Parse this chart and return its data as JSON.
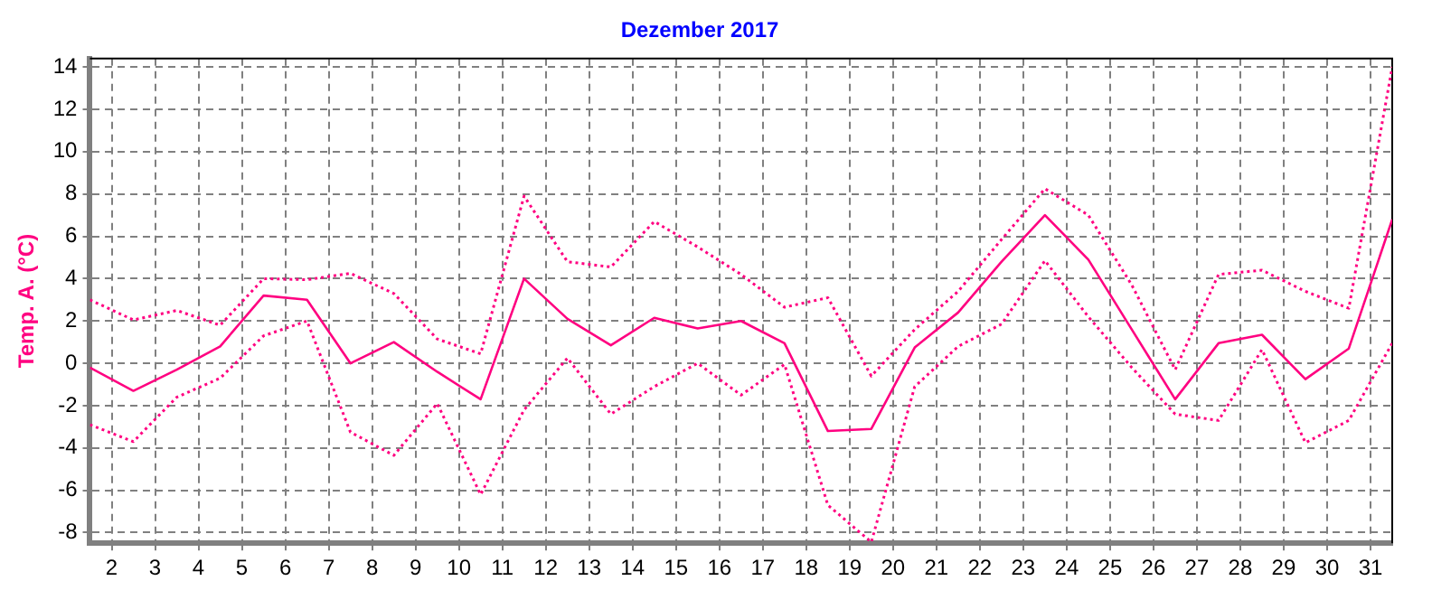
{
  "chart_data": {
    "type": "line",
    "title": "Dezember 2017",
    "ylabel": "Temp. A. (°C)",
    "x": [
      1.5,
      2.5,
      3.5,
      4.5,
      5.5,
      6.5,
      7.5,
      8.5,
      9.5,
      10.5,
      11.5,
      12.5,
      13.5,
      14.5,
      15.5,
      16.5,
      17.5,
      18.5,
      19.5,
      20.5,
      21.5,
      22.5,
      23.5,
      24.5,
      25.5,
      26.5,
      27.5,
      28.5,
      29.5,
      30.5,
      31.5
    ],
    "series": [
      {
        "color": "#ff0080",
        "line_style": "solid",
        "values": [
          -0.2,
          -1.3,
          -0.3,
          0.8,
          3.2,
          3.0,
          0.0,
          1.0,
          -0.4,
          -1.7,
          4.0,
          2.1,
          0.85,
          2.15,
          1.65,
          2.0,
          0.95,
          -3.2,
          -3.1,
          0.75,
          2.4,
          4.8,
          7.0,
          4.9,
          1.6,
          -1.7,
          0.95,
          1.35,
          -0.75,
          0.7,
          6.8
        ]
      },
      {
        "color": "#ff0080",
        "line_style": "dotted",
        "values": [
          3.0,
          2.05,
          2.5,
          1.8,
          4.0,
          3.95,
          4.25,
          3.3,
          1.15,
          0.45,
          7.9,
          4.8,
          4.55,
          6.7,
          5.5,
          4.2,
          2.65,
          3.1,
          -0.6,
          1.6,
          3.4,
          5.85,
          8.25,
          7.0,
          3.7,
          -0.3,
          4.2,
          4.4,
          3.4,
          2.6,
          14.0
        ]
      },
      {
        "color": "#ff0080",
        "line_style": "dotted",
        "values": [
          -2.9,
          -3.7,
          -1.6,
          -0.7,
          1.3,
          2.0,
          -3.25,
          -4.35,
          -1.9,
          -6.2,
          -2.2,
          0.25,
          -2.4,
          -1.1,
          0.0,
          -1.5,
          -0.05,
          -6.7,
          -8.45,
          -1.1,
          0.8,
          1.85,
          4.85,
          2.2,
          -0.2,
          -2.4,
          -2.7,
          0.65,
          -3.75,
          -2.7,
          0.95
        ]
      }
    ],
    "xlim": [
      1.5,
      31.5
    ],
    "xticks": [
      2,
      3,
      4,
      5,
      6,
      7,
      8,
      9,
      10,
      11,
      12,
      13,
      14,
      15,
      16,
      17,
      18,
      19,
      20,
      21,
      22,
      23,
      24,
      25,
      26,
      27,
      28,
      29,
      30,
      31
    ],
    "ylim": [
      -8.5,
      14.4
    ],
    "yticks": [
      -8,
      -6,
      -4,
      -2,
      0,
      2,
      4,
      6,
      8,
      10,
      12,
      14
    ],
    "grid": true,
    "marker": "none"
  }
}
